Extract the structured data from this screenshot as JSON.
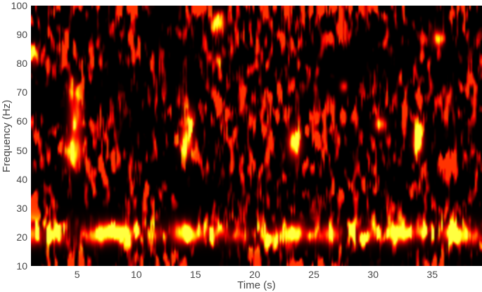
{
  "figure": {
    "background_color": "#ffffff",
    "text_color": "#474747"
  },
  "chart_data": {
    "type": "heatmap",
    "subtype": "spectrogram",
    "title": "",
    "xlabel": "Time (s)",
    "ylabel": "Frequency (Hz)",
    "xlim": [
      1.1,
      39.2
    ],
    "ylim": [
      10,
      100
    ],
    "x_ticks": [
      5,
      10,
      15,
      20,
      25,
      30,
      35
    ],
    "y_ticks": [
      10,
      20,
      30,
      40,
      50,
      60,
      70,
      80,
      90,
      100
    ],
    "grid": false,
    "legend": "none",
    "colormap": "hot",
    "value_range": [
      0,
      1
    ],
    "background_noise": {
      "seed": 7,
      "description": "dark red vertical streak noise on black background",
      "level": 0.45,
      "threshold": 0.5,
      "gamma": 1.3,
      "streak_modulation": [
        0.55,
        0.9
      ]
    },
    "persistent_band": {
      "center_hz": 21.5,
      "sigma_hz": 3.2,
      "level": 0.45,
      "floor": 0.06,
      "description": "continuous noisy activity band near 20 Hz across all times"
    },
    "events": [
      {
        "t": 4.75,
        "f": 50.0,
        "st": 0.45,
        "sf": 3.5,
        "amp": 0.92
      },
      {
        "t": 4.9,
        "f": 61.0,
        "st": 0.35,
        "sf": 4.0,
        "amp": 0.68
      },
      {
        "t": 4.7,
        "f": 70.0,
        "st": 0.3,
        "sf": 3.0,
        "amp": 0.36
      },
      {
        "t": 14.25,
        "f": 53.0,
        "st": 0.35,
        "sf": 3.2,
        "amp": 0.9
      },
      {
        "t": 14.45,
        "f": 61.0,
        "st": 0.3,
        "sf": 2.5,
        "amp": 0.5
      },
      {
        "t": 23.4,
        "f": 52.5,
        "st": 0.35,
        "sf": 3.2,
        "amp": 0.9
      },
      {
        "t": 30.6,
        "f": 59.0,
        "st": 0.3,
        "sf": 1.6,
        "amp": 0.72
      },
      {
        "t": 33.8,
        "f": 54.0,
        "st": 0.28,
        "sf": 3.2,
        "amp": 0.88
      },
      {
        "t": 17.0,
        "f": 94.0,
        "st": 0.32,
        "sf": 2.2,
        "amp": 0.9
      },
      {
        "t": 16.9,
        "f": 81.0,
        "st": 0.2,
        "sf": 1.5,
        "amp": 0.55
      },
      {
        "t": 35.5,
        "f": 88.5,
        "st": 0.28,
        "sf": 1.8,
        "amp": 0.78
      },
      {
        "t": 1.35,
        "f": 83.0,
        "st": 0.18,
        "sf": 2.2,
        "amp": 0.6
      },
      {
        "t": 27.5,
        "f": 72.0,
        "st": 0.18,
        "sf": 1.2,
        "amp": 0.55
      },
      {
        "t": 1.2,
        "f": 21.0,
        "st": 0.5,
        "sf": 2.2,
        "amp": 0.75
      },
      {
        "t": 3.3,
        "f": 20.0,
        "st": 0.5,
        "sf": 1.8,
        "amp": 0.5
      },
      {
        "t": 6.3,
        "f": 20.0,
        "st": 0.4,
        "sf": 1.8,
        "amp": 0.55
      },
      {
        "t": 7.3,
        "f": 21.5,
        "st": 0.5,
        "sf": 2.2,
        "amp": 0.85
      },
      {
        "t": 8.3,
        "f": 22.0,
        "st": 0.5,
        "sf": 2.0,
        "amp": 0.9
      },
      {
        "t": 9.3,
        "f": 21.0,
        "st": 0.45,
        "sf": 2.0,
        "amp": 0.8
      },
      {
        "t": 11.5,
        "f": 21.0,
        "st": 0.5,
        "sf": 1.8,
        "amp": 0.35
      },
      {
        "t": 13.8,
        "f": 21.5,
        "st": 0.5,
        "sf": 2.2,
        "amp": 0.9
      },
      {
        "t": 14.6,
        "f": 20.5,
        "st": 0.4,
        "sf": 1.8,
        "amp": 0.75
      },
      {
        "t": 15.4,
        "f": 21.0,
        "st": 0.35,
        "sf": 1.6,
        "amp": 0.5
      },
      {
        "t": 17.0,
        "f": 22.0,
        "st": 0.45,
        "sf": 1.8,
        "amp": 0.55
      },
      {
        "t": 18.8,
        "f": 20.5,
        "st": 0.5,
        "sf": 1.6,
        "amp": 0.35
      },
      {
        "t": 21.3,
        "f": 19.5,
        "st": 0.4,
        "sf": 1.8,
        "amp": 0.6
      },
      {
        "t": 22.7,
        "f": 21.0,
        "st": 0.45,
        "sf": 2.0,
        "amp": 0.85
      },
      {
        "t": 23.5,
        "f": 21.5,
        "st": 0.4,
        "sf": 2.0,
        "amp": 0.85
      },
      {
        "t": 24.8,
        "f": 20.5,
        "st": 0.45,
        "sf": 1.6,
        "amp": 0.45
      },
      {
        "t": 26.4,
        "f": 21.0,
        "st": 0.45,
        "sf": 2.0,
        "amp": 0.8
      },
      {
        "t": 29.5,
        "f": 20.5,
        "st": 0.6,
        "sf": 1.8,
        "amp": 0.4
      },
      {
        "t": 31.9,
        "f": 21.0,
        "st": 0.45,
        "sf": 2.2,
        "amp": 0.9
      },
      {
        "t": 32.7,
        "f": 21.5,
        "st": 0.4,
        "sf": 2.0,
        "amp": 0.85
      },
      {
        "t": 34.0,
        "f": 22.0,
        "st": 0.4,
        "sf": 1.8,
        "amp": 0.65
      },
      {
        "t": 36.5,
        "f": 21.5,
        "st": 0.45,
        "sf": 2.0,
        "amp": 0.85
      },
      {
        "t": 37.4,
        "f": 21.0,
        "st": 0.35,
        "sf": 1.6,
        "amp": 0.6
      },
      {
        "t": 38.5,
        "f": 20.0,
        "st": 0.35,
        "sf": 1.8,
        "amp": 0.5
      }
    ]
  }
}
